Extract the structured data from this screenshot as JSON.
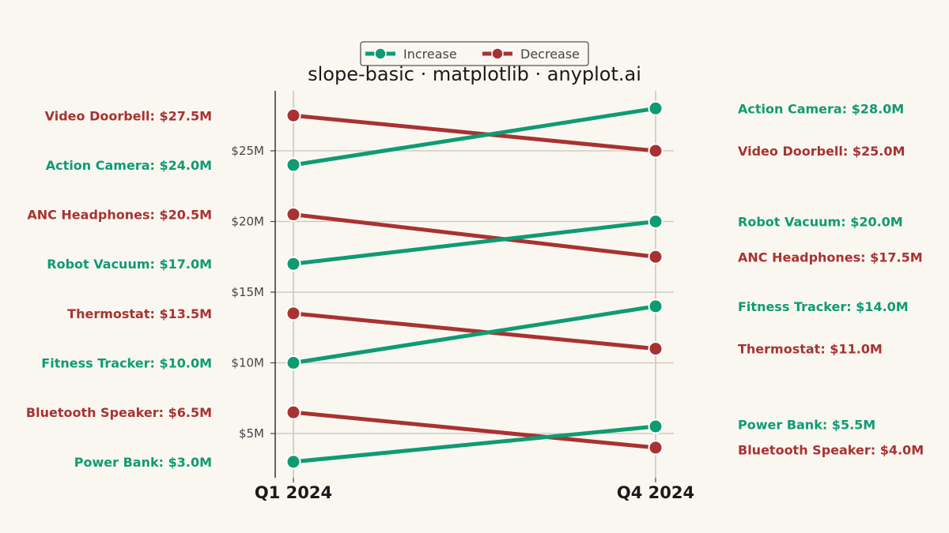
{
  "chart_data": {
    "type": "line",
    "subtype": "slope",
    "title": "slope-basic · matplotlib · anyplot.ai",
    "x": [
      "Q1 2024",
      "Q4 2024"
    ],
    "yticks": [
      "$5M",
      "$10M",
      "$15M",
      "$20M",
      "$25M"
    ],
    "ytick_values": [
      5,
      10,
      15,
      20,
      25
    ],
    "ylim": [
      1.8,
      29.2
    ],
    "grid": true,
    "legend_position": "top-center",
    "legend": [
      {
        "name": "Increase",
        "color": "#0f9b72"
      },
      {
        "name": "Decrease",
        "color": "#a83232"
      }
    ],
    "colors": {
      "increase": "#0f9b72",
      "decrease": "#a83232",
      "background": "#faf7f1"
    },
    "series": [
      {
        "name": "Video Doorbell",
        "values": [
          27.5,
          25.0
        ],
        "trend": "decrease",
        "start_label": "Video Doorbell: $27.5M",
        "end_label": "Video Doorbell: $25.0M"
      },
      {
        "name": "Action Camera",
        "values": [
          24.0,
          28.0
        ],
        "trend": "increase",
        "start_label": "Action Camera: $24.0M",
        "end_label": "Action Camera: $28.0M"
      },
      {
        "name": "ANC Headphones",
        "values": [
          20.5,
          17.5
        ],
        "trend": "decrease",
        "start_label": "ANC Headphones: $20.5M",
        "end_label": "ANC Headphones: $17.5M"
      },
      {
        "name": "Robot Vacuum",
        "values": [
          17.0,
          20.0
        ],
        "trend": "increase",
        "start_label": "Robot Vacuum: $17.0M",
        "end_label": "Robot Vacuum: $20.0M"
      },
      {
        "name": "Thermostat",
        "values": [
          13.5,
          11.0
        ],
        "trend": "decrease",
        "start_label": "Thermostat: $13.5M",
        "end_label": "Thermostat: $11.0M"
      },
      {
        "name": "Fitness Tracker",
        "values": [
          10.0,
          14.0
        ],
        "trend": "increase",
        "start_label": "Fitness Tracker: $10.0M",
        "end_label": "Fitness Tracker: $14.0M"
      },
      {
        "name": "Bluetooth Speaker",
        "values": [
          6.5,
          4.0
        ],
        "trend": "decrease",
        "start_label": "Bluetooth Speaker: $6.5M",
        "end_label": "Bluetooth Speaker: $4.0M"
      },
      {
        "name": "Power Bank",
        "values": [
          3.0,
          5.5
        ],
        "trend": "increase",
        "start_label": "Power Bank: $3.0M",
        "end_label": "Power Bank: $5.5M"
      }
    ]
  }
}
